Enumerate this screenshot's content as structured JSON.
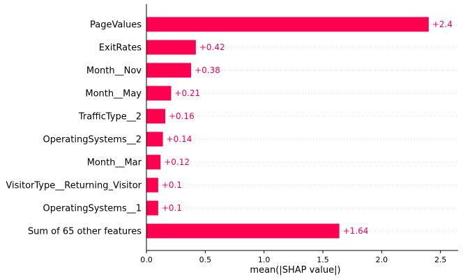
{
  "chart_data": {
    "type": "bar",
    "orientation": "horizontal",
    "categories": [
      "PageValues",
      "ExitRates",
      "Month__Nov",
      "Month__May",
      "TrafficType__2",
      "OperatingSystems__2",
      "Month__Mar",
      "VisitorType__Returning_Visitor",
      "OperatingSystems__1",
      "Sum of 65 other features"
    ],
    "values": [
      2.4,
      0.42,
      0.38,
      0.21,
      0.16,
      0.14,
      0.12,
      0.1,
      0.1,
      1.64
    ],
    "value_labels": [
      "+2.4",
      "+0.42",
      "+0.38",
      "+0.21",
      "+0.16",
      "+0.14",
      "+0.12",
      "+0.1",
      "+0.1",
      "+1.64"
    ],
    "xlabel": "mean(|SHAP value|)",
    "xlim": [
      0,
      2.65
    ],
    "xticks": [
      "0.0",
      "0.5",
      "1.0",
      "1.5",
      "2.0",
      "2.5"
    ],
    "xtick_values": [
      0,
      0.5,
      1.0,
      1.5,
      2.0,
      2.5
    ],
    "grid": "dotted horizontal row guides",
    "bar_color": "#ff0051"
  }
}
